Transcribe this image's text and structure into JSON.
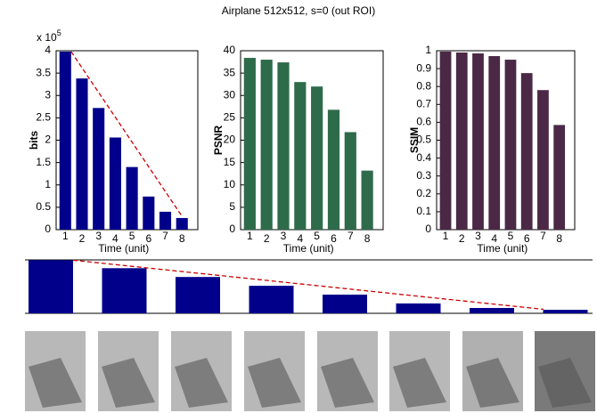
{
  "title": "Airplane 512x512,  s=0   (out ROI)",
  "chart_data": [
    {
      "type": "bar",
      "ylabel": "bits",
      "xlabel": "Time (unit)",
      "yscale_label": "x 10",
      "yscale_exponent": "5",
      "categories": [
        "1",
        "2",
        "3",
        "4",
        "5",
        "6",
        "7",
        "8"
      ],
      "values": [
        3.98,
        3.38,
        2.72,
        2.06,
        1.4,
        0.74,
        0.4,
        0.26
      ],
      "color": "#00008b",
      "ylim": [
        0,
        4
      ],
      "yticks": [
        0,
        0.5,
        1,
        1.5,
        2,
        2.5,
        3,
        3.5,
        4
      ],
      "reference_line": {
        "values": [
          3.98,
          0.3
        ],
        "color": "#cc0000"
      }
    },
    {
      "type": "bar",
      "ylabel": "PSNR",
      "xlabel": "Time (unit)",
      "categories": [
        "1",
        "2",
        "3",
        "4",
        "5",
        "6",
        "7",
        "8"
      ],
      "values": [
        38.4,
        38,
        37.4,
        33,
        32,
        26.8,
        21.8,
        13.2
      ],
      "color": "#2e6b4a",
      "ylim": [
        0,
        40
      ],
      "yticks": [
        0,
        5,
        10,
        15,
        20,
        25,
        30,
        35,
        40
      ]
    },
    {
      "type": "bar",
      "ylabel": "SSIM",
      "xlabel": "Time (unit)",
      "categories": [
        "1",
        "2",
        "3",
        "4",
        "5",
        "6",
        "7",
        "8"
      ],
      "values": [
        0.995,
        0.99,
        0.985,
        0.97,
        0.95,
        0.875,
        0.78,
        0.585
      ],
      "color": "#4b2846",
      "ylim": [
        0,
        1
      ],
      "yticks": [
        0,
        0.1,
        0.2,
        0.3,
        0.4,
        0.5,
        0.6,
        0.7,
        0.8,
        0.9,
        1
      ]
    }
  ]
}
